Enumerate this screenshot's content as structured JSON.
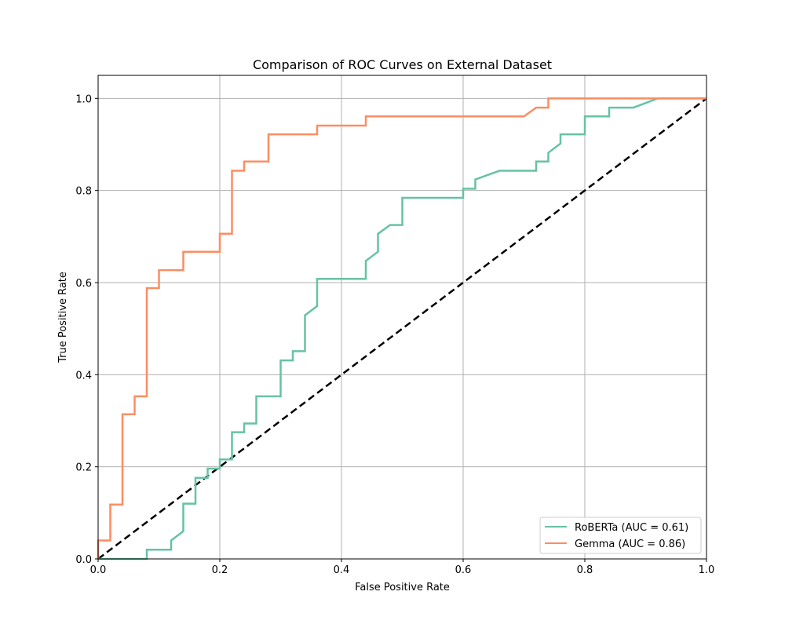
{
  "chart_data": {
    "type": "line",
    "title": "Comparison of ROC Curves on External Dataset",
    "xlabel": "False Positive Rate",
    "ylabel": "True Positive Rate",
    "xlim": [
      0.0,
      1.0
    ],
    "ylim": [
      0.0,
      1.05
    ],
    "xticks": [
      "0.0",
      "0.2",
      "0.4",
      "0.6",
      "0.8",
      "1.0"
    ],
    "yticks": [
      "0.0",
      "0.2",
      "0.4",
      "0.6",
      "0.8",
      "1.0"
    ],
    "grid": true,
    "legend_position": "lower-right",
    "series": [
      {
        "name": "RoBERTa (AUC = 0.61)",
        "color": "#66c2a5",
        "x": [
          0.0,
          0.02,
          0.04,
          0.06,
          0.08,
          0.08,
          0.12,
          0.12,
          0.14,
          0.14,
          0.16,
          0.16,
          0.18,
          0.18,
          0.2,
          0.2,
          0.22,
          0.22,
          0.24,
          0.24,
          0.26,
          0.26,
          0.3,
          0.3,
          0.32,
          0.32,
          0.34,
          0.34,
          0.36,
          0.36,
          0.44,
          0.44,
          0.46,
          0.46,
          0.48,
          0.5,
          0.5,
          0.6,
          0.6,
          0.62,
          0.62,
          0.66,
          0.72,
          0.72,
          0.74,
          0.74,
          0.76,
          0.76,
          0.8,
          0.8,
          0.84,
          0.84,
          0.88,
          0.92,
          1.0
        ],
        "y": [
          0.0,
          0.0,
          0.0,
          0.0,
          0.0,
          0.02,
          0.02,
          0.04,
          0.06,
          0.12,
          0.12,
          0.176,
          0.176,
          0.196,
          0.196,
          0.216,
          0.216,
          0.275,
          0.275,
          0.294,
          0.294,
          0.353,
          0.353,
          0.431,
          0.431,
          0.451,
          0.451,
          0.529,
          0.549,
          0.608,
          0.608,
          0.647,
          0.667,
          0.706,
          0.725,
          0.725,
          0.784,
          0.784,
          0.804,
          0.804,
          0.824,
          0.843,
          0.843,
          0.863,
          0.863,
          0.882,
          0.902,
          0.922,
          0.922,
          0.961,
          0.961,
          0.98,
          0.98,
          1.0,
          1.0
        ]
      },
      {
        "name": "Gemma (AUC = 0.86)",
        "color": "#fc8d62",
        "x": [
          0.0,
          0.0,
          0.02,
          0.02,
          0.04,
          0.04,
          0.06,
          0.06,
          0.08,
          0.08,
          0.1,
          0.1,
          0.14,
          0.14,
          0.2,
          0.2,
          0.22,
          0.22,
          0.24,
          0.24,
          0.28,
          0.28,
          0.36,
          0.36,
          0.44,
          0.44,
          0.7,
          0.72,
          0.74,
          0.74,
          0.9,
          1.0
        ],
        "y": [
          0.0,
          0.04,
          0.04,
          0.118,
          0.118,
          0.314,
          0.314,
          0.353,
          0.353,
          0.588,
          0.588,
          0.627,
          0.627,
          0.667,
          0.667,
          0.706,
          0.706,
          0.843,
          0.843,
          0.863,
          0.863,
          0.922,
          0.922,
          0.941,
          0.941,
          0.961,
          0.961,
          0.98,
          0.98,
          1.0,
          1.0,
          1.0
        ]
      }
    ],
    "reference_line": {
      "x": [
        0.0,
        1.0
      ],
      "y": [
        0.0,
        1.0
      ],
      "style": "dashed",
      "color": "#000000"
    }
  }
}
